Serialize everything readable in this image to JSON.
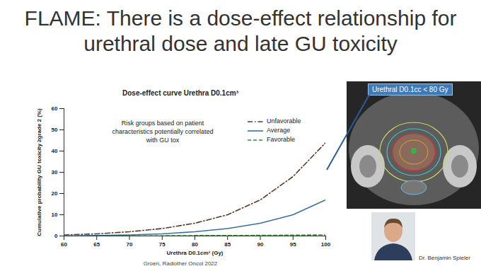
{
  "chart_data": {
    "type": "line",
    "title": "FLAME: There is a dose-effect relationship for urethral dose and late GU toxicity",
    "subtitle": "Dose-effect curve Urethra D0.1cm³",
    "x_label": "Urethra D0.1cm³ (Gy)",
    "y_label": "Cumulative probability GU toxicity ≥grade 2 (%)",
    "annotations": [
      "Risk groups based on patient characteristics potentially correlated with GU tox",
      "Groen, Radiother Oncol 2022",
      "Urethral D0.1cc < 80 Gy",
      "Dr. Benjamin Spieler"
    ],
    "x": [
      60,
      65,
      70,
      75,
      80,
      85,
      90,
      95,
      100
    ],
    "series": [
      {
        "name": "Unfavorable",
        "color": "#5a3a2a",
        "line_style": "dashdot",
        "values": [
          0.5,
          1,
          2,
          3.5,
          6,
          10,
          17,
          28,
          44
        ]
      },
      {
        "name": "Average",
        "color": "#3c6fa0",
        "line_style": "solid",
        "values": [
          0,
          0.2,
          0.5,
          1,
          2,
          3.5,
          6,
          10,
          17
        ]
      },
      {
        "name": "Favorable",
        "color": "#3a8a3a",
        "line_style": "dashed",
        "values": [
          0,
          0,
          0.1,
          0.1,
          0.2,
          0.2,
          0.3,
          0.4,
          0.5
        ]
      }
    ],
    "xlim": [
      60,
      100
    ],
    "ylim": [
      0,
      60
    ],
    "xticks": [
      60,
      65,
      70,
      75,
      80,
      85,
      90,
      95,
      100
    ],
    "yticks": [
      0,
      10,
      20,
      30,
      40,
      50,
      60
    ],
    "grid": false,
    "legend": "top-right"
  }
}
